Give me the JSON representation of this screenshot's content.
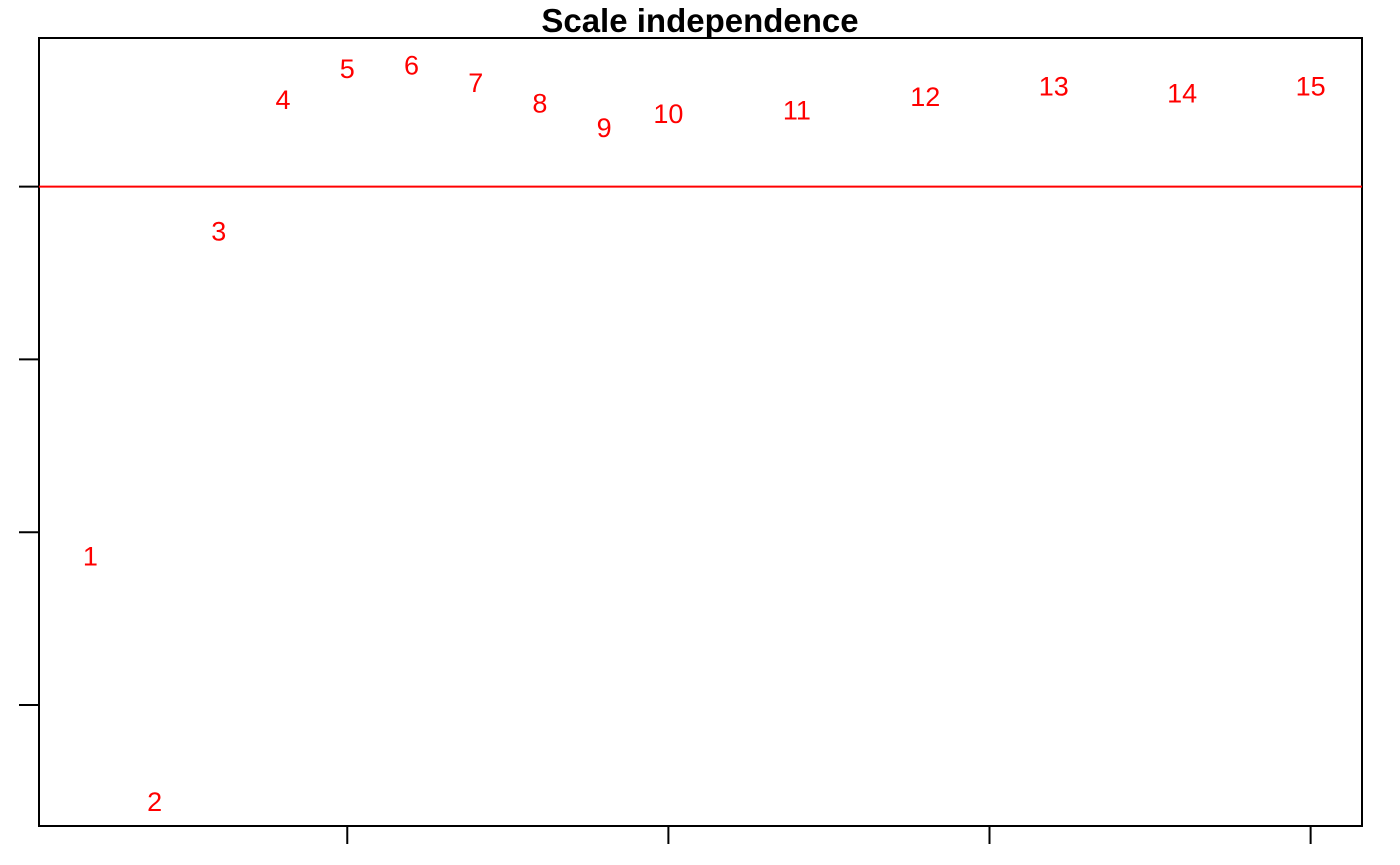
{
  "chart_data": {
    "type": "scatter",
    "title": "Scale independence",
    "xlabel": "",
    "ylabel": "",
    "marker": "text-labels",
    "x_ticks": [
      5,
      10,
      15,
      20
    ],
    "y_ticks": [
      -0.5,
      0.0,
      0.5,
      1.0
    ],
    "tick_labels_shown": false,
    "xlim": [
      0.2,
      20.8
    ],
    "ylim": [
      -0.85,
      1.43
    ],
    "grid": false,
    "reference_line": {
      "orientation": "horizontal",
      "y": 1.0
    },
    "points": [
      {
        "label": "1",
        "x": 1,
        "y": -0.07
      },
      {
        "label": "2",
        "x": 2,
        "y": -0.78
      },
      {
        "label": "3",
        "x": 3,
        "y": 0.87
      },
      {
        "label": "4",
        "x": 4,
        "y": 1.25
      },
      {
        "label": "5",
        "x": 5,
        "y": 1.34
      },
      {
        "label": "6",
        "x": 6,
        "y": 1.35
      },
      {
        "label": "7",
        "x": 7,
        "y": 1.3
      },
      {
        "label": "8",
        "x": 8,
        "y": 1.24
      },
      {
        "label": "9",
        "x": 9,
        "y": 1.17
      },
      {
        "label": "10",
        "x": 10,
        "y": 1.21
      },
      {
        "label": "11",
        "x": 12,
        "y": 1.22
      },
      {
        "label": "12",
        "x": 14,
        "y": 1.26
      },
      {
        "label": "13",
        "x": 16,
        "y": 1.29
      },
      {
        "label": "14",
        "x": 18,
        "y": 1.27
      },
      {
        "label": "15",
        "x": 20,
        "y": 1.29
      }
    ]
  },
  "colors": {
    "points": "#ff0000",
    "reference_line": "#ff0000",
    "axes": "#000000"
  }
}
